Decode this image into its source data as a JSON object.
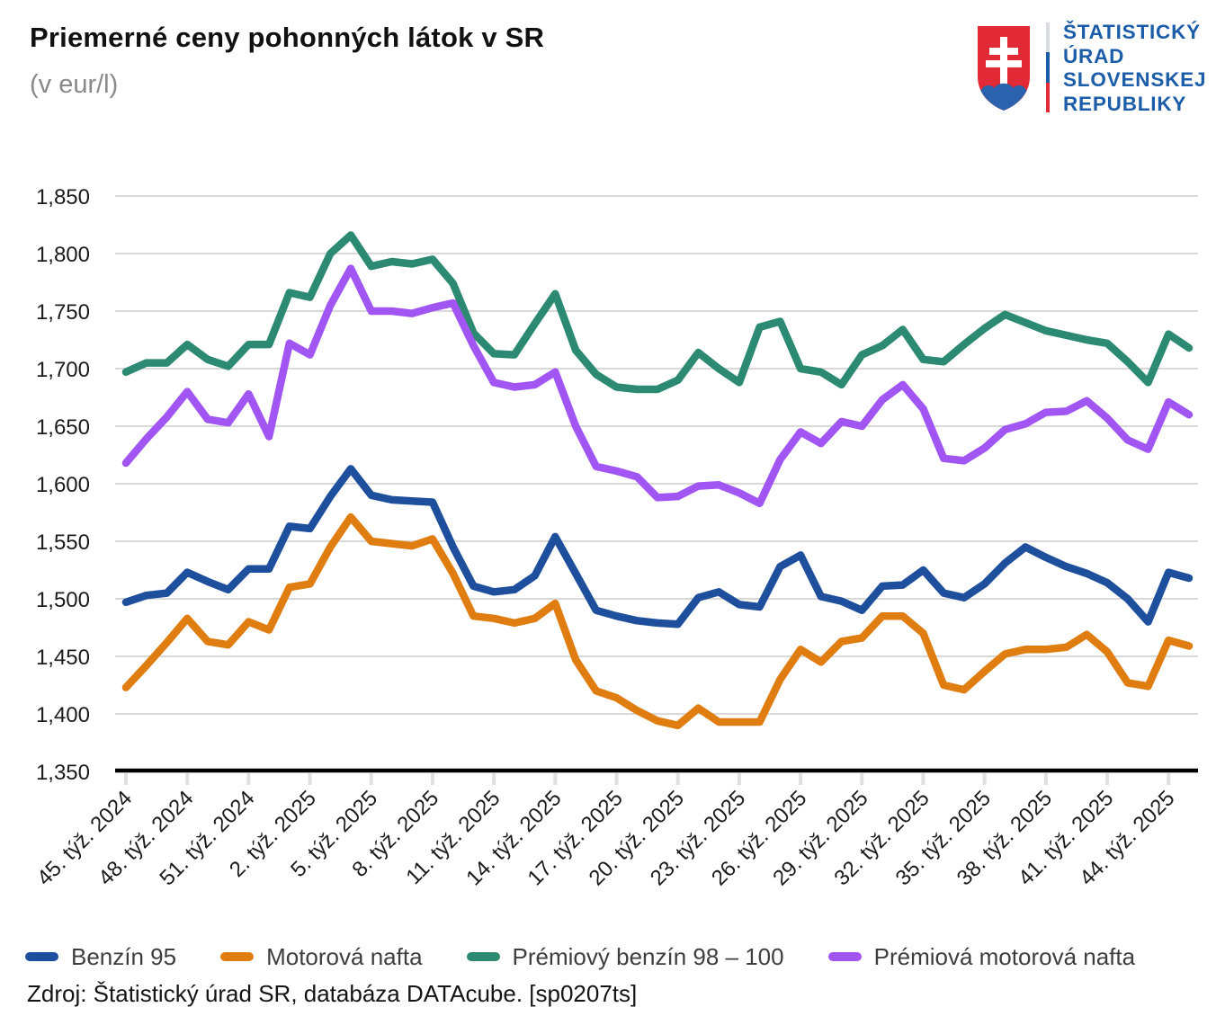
{
  "header": {
    "title": "Priemerné ceny pohonných látok v SR",
    "subtitle": "(v eur/l)"
  },
  "logo": {
    "lines": [
      "ŠTATISTICKÝ",
      "ÚRAD",
      "SLOVENSKEJ",
      "REPUBLIKY"
    ],
    "colors": {
      "text_blue": "#1c5da9",
      "shield_red": "#e22a36",
      "shield_blue": "#2a62ae",
      "cross_white": "#ffffff",
      "flag_white": "#d9dde2"
    }
  },
  "source": {
    "text": "Zdroj: Štatistický úrad SR, databáza DATAcube. [sp0207ts]"
  },
  "chart_data": {
    "type": "line",
    "title": "Priemerné ceny pohonných látok v SR",
    "ylabel": "v eur/l",
    "xlabel": "",
    "ylim": [
      1.35,
      1.85
    ],
    "grid": true,
    "legend_position": "bottom",
    "y_tick_values": [
      1.85,
      1.8,
      1.75,
      1.7,
      1.65,
      1.6,
      1.55,
      1.5,
      1.45,
      1.4,
      1.35
    ],
    "y_tick_labels": [
      "1,850",
      "1,800",
      "1,750",
      "1,700",
      "1,650",
      "1,600",
      "1,550",
      "1,500",
      "1,450",
      "1,400",
      "1,350"
    ],
    "weeks_count": 53,
    "x_tick_step": 3,
    "x_tick_labels": [
      "45. týž. 2024",
      "48. týž. 2024",
      "51. týž. 2024",
      "2. týž. 2025",
      "5. týž. 2025",
      "8. týž. 2025",
      "11. týž. 2025",
      "14. týž. 2025",
      "17. týž. 2025",
      "20. týž. 2025",
      "23. týž. 2025",
      "26. týž. 2025",
      "29. týž. 2025",
      "32. týž. 2025",
      "35. týž. 2025",
      "38. týž. 2025",
      "41. týž. 2025",
      "44. týž. 2025"
    ],
    "series": [
      {
        "name": "Benzín 95",
        "color": "#1d4f9c",
        "values": [
          1.497,
          1.503,
          1.505,
          1.523,
          1.515,
          1.508,
          1.526,
          1.526,
          1.563,
          1.561,
          1.589,
          1.613,
          1.59,
          1.586,
          1.585,
          1.584,
          1.545,
          1.511,
          1.506,
          1.508,
          1.52,
          1.554,
          1.522,
          1.49,
          1.485,
          1.481,
          1.479,
          1.478,
          1.501,
          1.506,
          1.495,
          1.493,
          1.528,
          1.538,
          1.502,
          1.498,
          1.49,
          1.511,
          1.512,
          1.525,
          1.505,
          1.501,
          1.513,
          1.531,
          1.545,
          1.536,
          1.528,
          1.522,
          1.514,
          1.5,
          1.48,
          1.523,
          1.518
        ]
      },
      {
        "name": "Motorová nafta",
        "color": "#e07d10",
        "values": [
          1.423,
          1.442,
          1.462,
          1.483,
          1.463,
          1.46,
          1.48,
          1.473,
          1.51,
          1.513,
          1.545,
          1.571,
          1.55,
          1.548,
          1.546,
          1.552,
          1.522,
          1.485,
          1.483,
          1.479,
          1.483,
          1.496,
          1.447,
          1.42,
          1.414,
          1.403,
          1.394,
          1.39,
          1.405,
          1.393,
          1.393,
          1.393,
          1.43,
          1.456,
          1.445,
          1.463,
          1.466,
          1.485,
          1.485,
          1.47,
          1.425,
          1.421,
          1.437,
          1.452,
          1.456,
          1.456,
          1.458,
          1.469,
          1.454,
          1.427,
          1.424,
          1.464,
          1.459
        ]
      },
      {
        "name": "Prémiový benzín 98 – 100",
        "color": "#2b8a71",
        "values": [
          1.697,
          1.705,
          1.705,
          1.721,
          1.708,
          1.702,
          1.721,
          1.721,
          1.766,
          1.762,
          1.8,
          1.816,
          1.789,
          1.793,
          1.791,
          1.795,
          1.774,
          1.731,
          1.713,
          1.712,
          1.739,
          1.765,
          1.716,
          1.695,
          1.684,
          1.682,
          1.682,
          1.69,
          1.714,
          1.7,
          1.688,
          1.736,
          1.741,
          1.7,
          1.697,
          1.686,
          1.712,
          1.72,
          1.734,
          1.708,
          1.706,
          1.721,
          1.735,
          1.747,
          1.74,
          1.733,
          1.729,
          1.725,
          1.722,
          1.706,
          1.688,
          1.73,
          1.718
        ]
      },
      {
        "name": "Prémiová motorová nafta",
        "color": "#a155f2",
        "values": [
          1.618,
          1.639,
          1.658,
          1.68,
          1.656,
          1.653,
          1.678,
          1.641,
          1.722,
          1.712,
          1.755,
          1.787,
          1.75,
          1.75,
          1.748,
          1.753,
          1.757,
          1.72,
          1.688,
          1.684,
          1.686,
          1.697,
          1.65,
          1.615,
          1.611,
          1.606,
          1.588,
          1.589,
          1.598,
          1.599,
          1.592,
          1.583,
          1.621,
          1.645,
          1.635,
          1.654,
          1.65,
          1.673,
          1.686,
          1.665,
          1.622,
          1.62,
          1.631,
          1.647,
          1.652,
          1.662,
          1.663,
          1.672,
          1.657,
          1.638,
          1.63,
          1.671,
          1.66
        ]
      }
    ],
    "axis_colors": {
      "gridline": "#d9d9d9",
      "axis_line": "#000000",
      "tick_mark": "#e0e0e0",
      "tick_label": "#1c1c1c"
    }
  }
}
